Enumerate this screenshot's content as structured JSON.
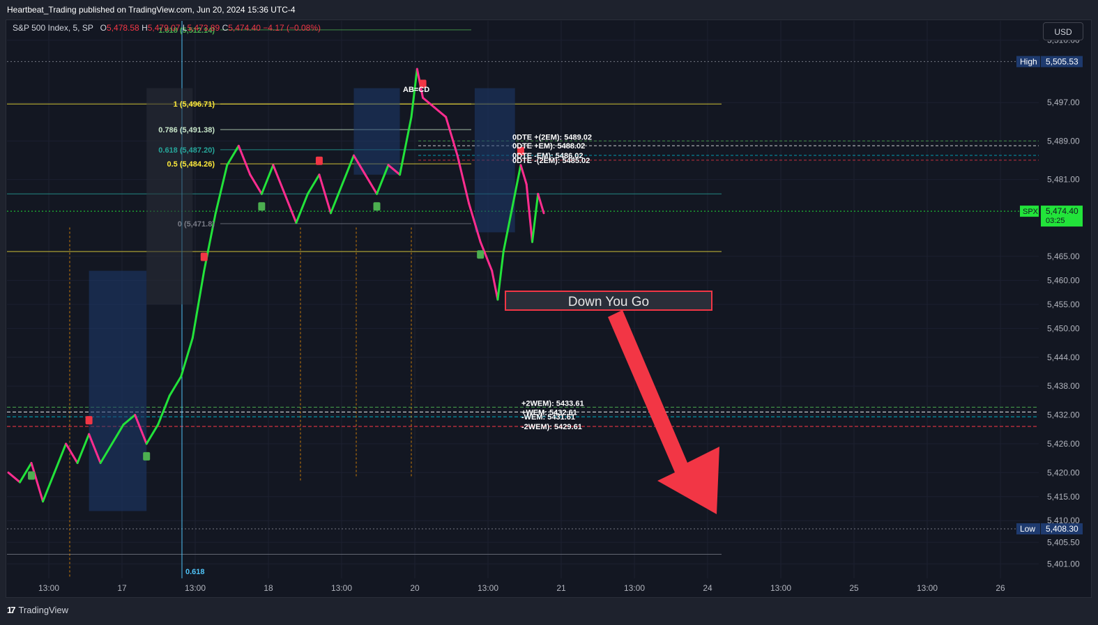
{
  "header": {
    "published_text": "Heartbeat_Trading published on TradingView.com, Jun 20, 2024 15:36 UTC-4"
  },
  "legend": {
    "symbol": "S&P 500 Index, 5, SP",
    "o_label": "O",
    "o_value": "5,478.58",
    "h_label": "H",
    "h_value": "5,479.07",
    "l_label": "L",
    "l_value": "5,473.89",
    "c_label": "C",
    "c_value": "5,474.40",
    "change": "−4.17 (−0.08%)"
  },
  "currency": "USD",
  "annotation": {
    "text": "Down You Go"
  },
  "footer": {
    "brand": "TradingView"
  },
  "colors": {
    "background": "#131722",
    "grid": "#1e222d",
    "bull": "#22e33a",
    "bear": "#f23645",
    "pink": "#ff2d8f",
    "arrow": "#f23645",
    "fib_yellow": "#ffeb3b",
    "accent_blue": "#2962ff"
  },
  "chart_data": {
    "type": "line",
    "ylim": [
      5398,
      5514
    ],
    "y_ticks": [
      5510.0,
      5497.0,
      5489.0,
      5481.0,
      5465.0,
      5460.0,
      5455.0,
      5450.0,
      5444.0,
      5438.0,
      5432.0,
      5426.0,
      5420.0,
      5415.0,
      5410.0,
      5405.5,
      5401.0
    ],
    "y_tick_labels": [
      "5,510.00",
      "5,497.00",
      "5,489.00",
      "5,481.00",
      "5,465.00",
      "5,460.00",
      "5,455.00",
      "5,450.00",
      "5,444.00",
      "5,438.00",
      "5,432.00",
      "5,426.00",
      "5,420.00",
      "5,415.00",
      "5,410.00",
      "5,405.50",
      "5,401.00"
    ],
    "x_tick_labels": [
      "13:00",
      "17",
      "13:00",
      "18",
      "13:00",
      "20",
      "13:00",
      "21",
      "13:00",
      "24",
      "13:00",
      "25",
      "13:00",
      "26"
    ],
    "price_markers": [
      {
        "label": "High",
        "value": "5,505.53",
        "y": 5505.53
      },
      {
        "label": "SPX",
        "value": "5,474.40",
        "sub": "03:25",
        "y": 5474.4
      },
      {
        "label": "Low",
        "value": "5,408.30",
        "y": 5408.3
      }
    ],
    "fib_levels": [
      {
        "label": "1.618 (5,512.14)",
        "y": 5512.14,
        "color": "#4caf50"
      },
      {
        "label": "1 (5,496.71)",
        "y": 5496.71,
        "color": "#ffeb3b"
      },
      {
        "label": "0.786 (5,491.38)",
        "y": 5491.38,
        "color": "#c8e6c9"
      },
      {
        "label": "0.618 (5,487.20)",
        "y": 5487.2,
        "color": "#26a69a"
      },
      {
        "label": "0.5 (5,484.26)",
        "y": 5484.26,
        "color": "#ffeb3b"
      },
      {
        "label": "0 (5,471.8)",
        "y": 5471.8,
        "color": "#787b86"
      }
    ],
    "fib_extension_label": "0.618",
    "level_labels": [
      {
        "label": "0DTE +(2EM): 5489.02",
        "y": 5489.02
      },
      {
        "label": "0DTE +EM): 5488.02",
        "y": 5488.02
      },
      {
        "label": "0DTE -EM): 5486.02",
        "y": 5486.02
      },
      {
        "label": "0DTE -(2EM): 5485.02",
        "y": 5485.02
      },
      {
        "label": "+2WEM): 5433.61",
        "y": 5433.61
      },
      {
        "label": "+WEM: 5432.61",
        "y": 5432.61
      },
      {
        "label": "-WEM: 5431.61",
        "y": 5431.61
      },
      {
        "label": "-2WEM): 5429.61",
        "y": 5429.61
      }
    ],
    "pattern_label": "AB=CD",
    "price_path": [
      [
        0,
        5420
      ],
      [
        10,
        5418
      ],
      [
        20,
        5422
      ],
      [
        30,
        5414
      ],
      [
        40,
        5420
      ],
      [
        50,
        5426
      ],
      [
        60,
        5422
      ],
      [
        70,
        5428
      ],
      [
        80,
        5422
      ],
      [
        90,
        5426
      ],
      [
        100,
        5430
      ],
      [
        110,
        5432
      ],
      [
        120,
        5426
      ],
      [
        130,
        5430
      ],
      [
        140,
        5436
      ],
      [
        150,
        5440
      ],
      [
        160,
        5448
      ],
      [
        170,
        5462
      ],
      [
        180,
        5474
      ],
      [
        190,
        5484
      ],
      [
        200,
        5488
      ],
      [
        210,
        5482
      ],
      [
        220,
        5478
      ],
      [
        230,
        5484
      ],
      [
        240,
        5478
      ],
      [
        250,
        5472
      ],
      [
        260,
        5478
      ],
      [
        270,
        5482
      ],
      [
        280,
        5474
      ],
      [
        290,
        5480
      ],
      [
        300,
        5486
      ],
      [
        310,
        5482
      ],
      [
        320,
        5478
      ],
      [
        330,
        5484
      ],
      [
        340,
        5482
      ],
      [
        350,
        5494
      ],
      [
        355,
        5504
      ],
      [
        360,
        5498
      ],
      [
        370,
        5496
      ],
      [
        380,
        5494
      ],
      [
        390,
        5486
      ],
      [
        400,
        5476
      ],
      [
        410,
        5468
      ],
      [
        420,
        5462
      ],
      [
        425,
        5456
      ],
      [
        430,
        5466
      ],
      [
        440,
        5478
      ],
      [
        445,
        5484
      ],
      [
        450,
        5480
      ],
      [
        455,
        5468
      ],
      [
        460,
        5478
      ],
      [
        465,
        5474
      ]
    ]
  }
}
